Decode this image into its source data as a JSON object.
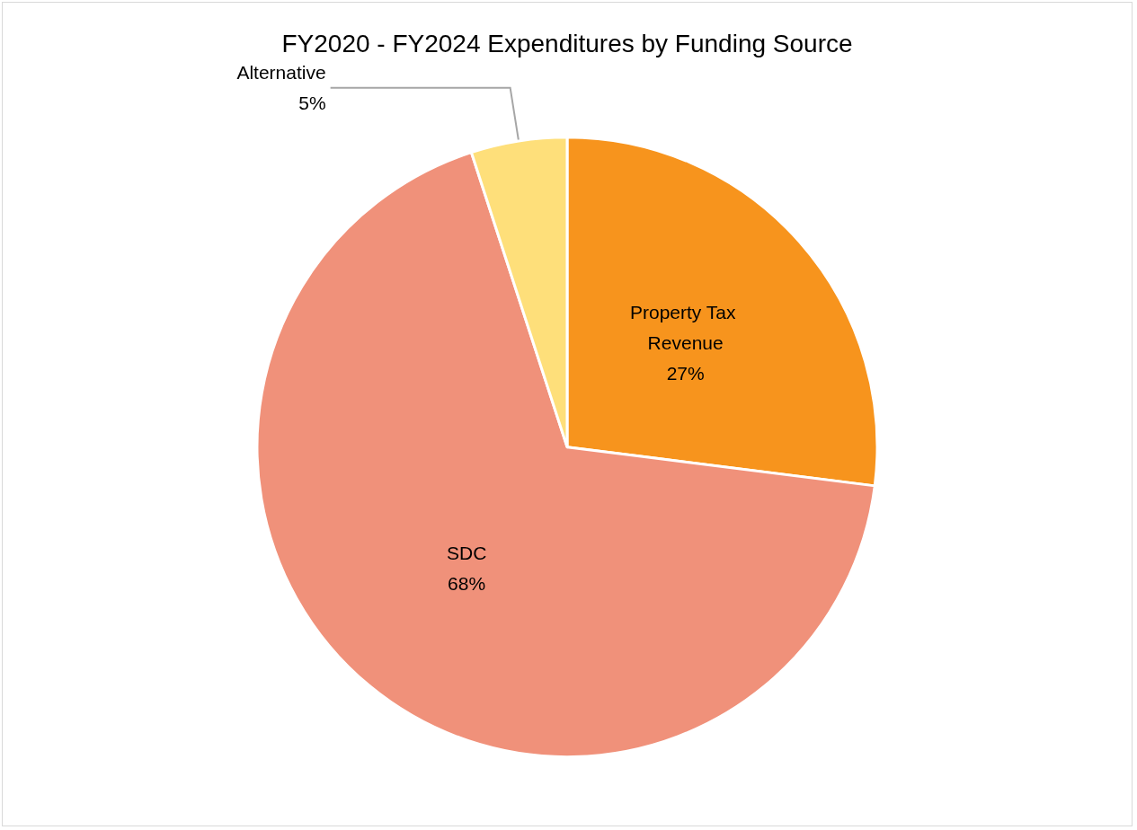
{
  "chart_data": {
    "type": "pie",
    "title": "FY2020 - FY2024 Expenditures by Funding Source",
    "categories": [
      "Property Tax Revenue",
      "SDC",
      "Alternative"
    ],
    "values": [
      27,
      68,
      5
    ],
    "value_labels": [
      "27%",
      "68%",
      "5%"
    ],
    "colors": [
      "#f7941d",
      "#f0917a",
      "#fedf7a"
    ],
    "legend": false
  }
}
